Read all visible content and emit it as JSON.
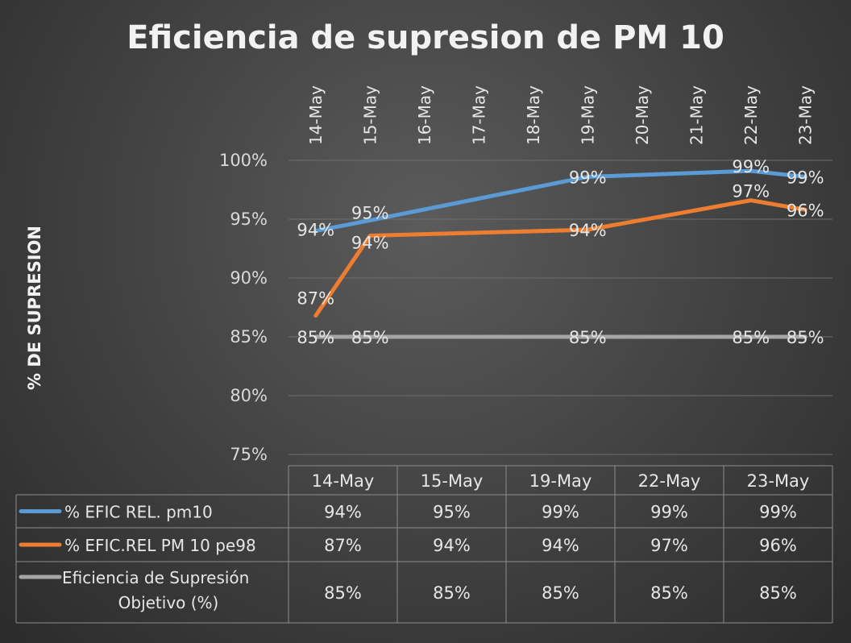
{
  "chart_data": {
    "type": "line",
    "title": "Eficiencia de supresion de PM 10",
    "ylabel": "% DE SUPRESION",
    "ylim": [
      75,
      100
    ],
    "yticks": [
      "75%",
      "80%",
      "85%",
      "90%",
      "95%",
      "100%"
    ],
    "axis_categories": [
      "14-May",
      "15-May",
      "16-May",
      "17-May",
      "18-May",
      "19-May",
      "20-May",
      "21-May",
      "22-May",
      "23-May"
    ],
    "categories": [
      "14-May",
      "15-May",
      "19-May",
      "22-May",
      "23-May"
    ],
    "series": [
      {
        "name": "% EFIC REL. pm10",
        "color": "#5b9bd5",
        "values": [
          94.0,
          94.9,
          98.6,
          99.1,
          98.6
        ],
        "labels": [
          "94%",
          "95%",
          "99%",
          "99%",
          "99%"
        ]
      },
      {
        "name": "% EFIC.REL PM 10 pe98",
        "color": "#ed7d31",
        "values": [
          86.8,
          93.6,
          94.1,
          96.6,
          95.8
        ],
        "labels": [
          "87%",
          "94%",
          "94%",
          "97%",
          "96%"
        ]
      },
      {
        "name": "Eficiencia de Supresión Objetivo (%)",
        "name_lines": [
          "Eficiencia de Supresión",
          "Objetivo (%)"
        ],
        "color": "#a5a5a5",
        "values": [
          85,
          85,
          85,
          85,
          85
        ],
        "labels": [
          "85%",
          "85%",
          "85%",
          "85%",
          "85%"
        ]
      }
    ],
    "grid": true,
    "legend": "data-table"
  }
}
